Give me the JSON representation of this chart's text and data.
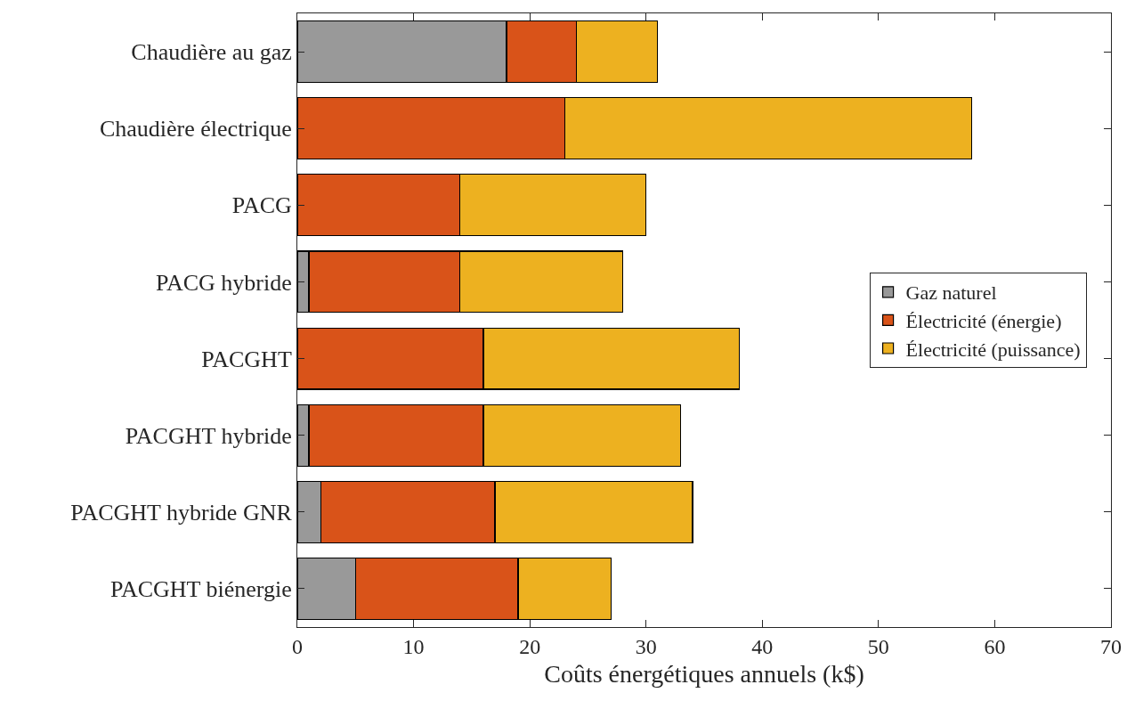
{
  "chart_data": {
    "type": "bar",
    "orientation": "horizontal",
    "stacked": true,
    "categories": [
      "Chaudière au gaz",
      "Chaudière électrique",
      "PACG",
      "PACG hybride",
      "PACGHT",
      "PACGHT hybride",
      "PACGHT hybride GNR",
      "PACGHT biénergie"
    ],
    "series": [
      {
        "name": "Gaz naturel",
        "color": "#999999",
        "values": [
          18,
          0,
          0,
          1,
          0,
          1,
          2,
          5
        ]
      },
      {
        "name": "Électricité (énergie)",
        "color": "#d95319",
        "values": [
          6,
          23,
          14,
          13,
          16,
          15,
          15,
          14
        ]
      },
      {
        "name": "Électricité (puissance)",
        "color": "#edb120",
        "values": [
          7,
          35,
          16,
          14,
          22,
          17,
          17,
          8
        ]
      }
    ],
    "xlabel": "Coûts énergétiques annuels (k$)",
    "xlim": [
      0,
      70
    ],
    "xticks": [
      0,
      10,
      20,
      30,
      40,
      50,
      60,
      70
    ],
    "grid": false,
    "legend": "right"
  }
}
